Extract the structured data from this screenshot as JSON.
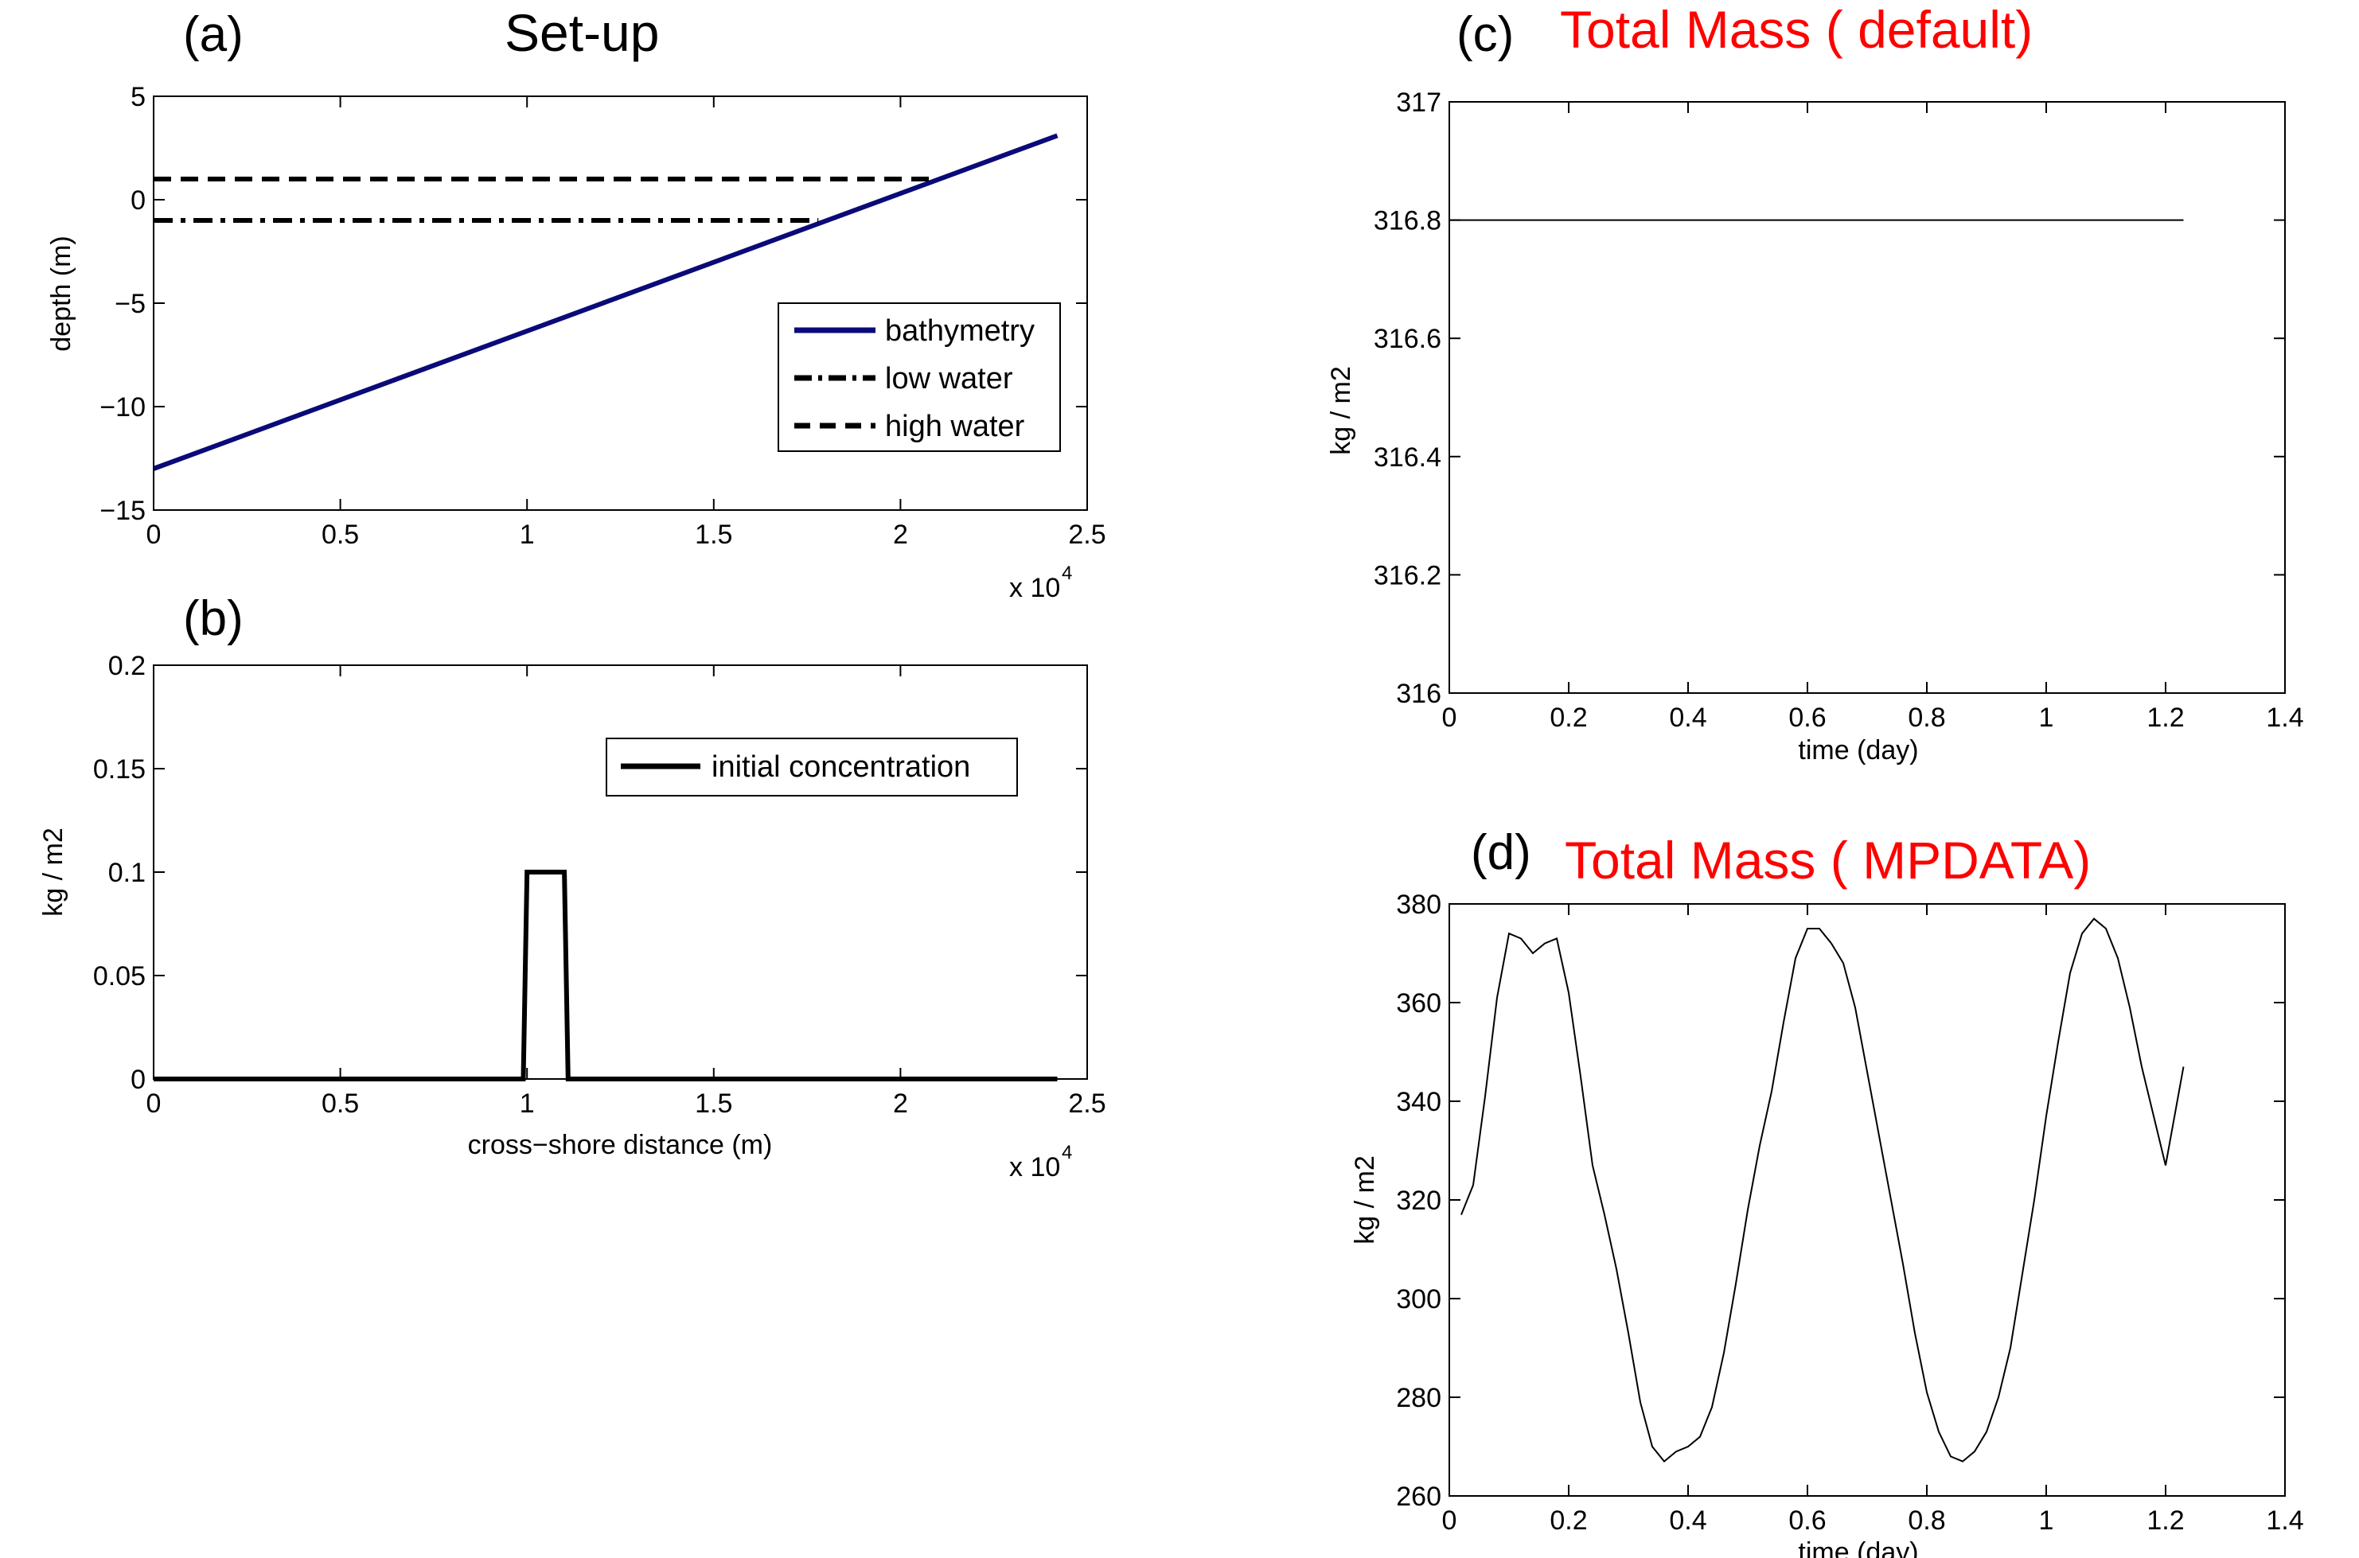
{
  "chart_data": [
    {
      "id": "a",
      "panel_label": "(a)",
      "title": "Set-up",
      "type": "line",
      "xlabel": "",
      "ylabel": "depth (m)",
      "xlim": [
        0,
        25000
      ],
      "ylim": [
        -15,
        5
      ],
      "x_ticks": [
        0,
        5000,
        10000,
        15000,
        20000,
        25000
      ],
      "x_tick_labels": [
        "0",
        "0.5",
        "1",
        "1.5",
        "2",
        "2.5"
      ],
      "y_ticks": [
        -15,
        -10,
        -5,
        0,
        5
      ],
      "y_tick_labels": [
        "−15",
        "−10",
        "−5",
        "0",
        "5"
      ],
      "x_multiplier": {
        "base": "x 10",
        "exponent": "4"
      },
      "legend": {
        "placement": "right",
        "entries": [
          "bathymetry",
          "low water",
          "high water"
        ]
      },
      "series": [
        {
          "name": "bathymetry",
          "style": "solid",
          "color": "#0a0a78",
          "x": [
            0,
            24200
          ],
          "y": [
            -13,
            3.1
          ]
        },
        {
          "name": "low water",
          "style": "dashdot",
          "color": "#000000",
          "x": [
            0,
            17800
          ],
          "y": [
            -1,
            -1
          ]
        },
        {
          "name": "high water",
          "style": "dashed",
          "color": "#000000",
          "x": [
            0,
            21000
          ],
          "y": [
            1,
            1
          ]
        }
      ]
    },
    {
      "id": "b",
      "panel_label": "(b)",
      "title": "",
      "type": "line",
      "xlabel": "cross−shore distance (m)",
      "ylabel": "kg / m2",
      "xlim": [
        0,
        25000
      ],
      "ylim": [
        0,
        0.2
      ],
      "x_ticks": [
        0,
        5000,
        10000,
        15000,
        20000,
        25000
      ],
      "x_tick_labels": [
        "0",
        "0.5",
        "1",
        "1.5",
        "2",
        "2.5"
      ],
      "y_ticks": [
        0,
        0.05,
        0.1,
        0.15,
        0.2
      ],
      "y_tick_labels": [
        "0",
        "0.05",
        "0.1",
        "0.15",
        "0.2"
      ],
      "x_multiplier": {
        "base": "x 10",
        "exponent": "4"
      },
      "legend": {
        "placement": "top-right",
        "entries": [
          "initial concentration"
        ]
      },
      "series": [
        {
          "name": "initial concentration",
          "style": "solid",
          "color": "#000000",
          "x": [
            0,
            9900,
            10000,
            11000,
            11100,
            24200
          ],
          "y": [
            0,
            0,
            0.1,
            0.1,
            0,
            0
          ]
        }
      ]
    },
    {
      "id": "c",
      "panel_label": "(c)",
      "title": "Total Mass ( default)",
      "type": "line",
      "xlabel": "time (day)",
      "ylabel": "kg / m2",
      "xlim": [
        0,
        1.4
      ],
      "ylim": [
        316,
        317
      ],
      "x_ticks": [
        0,
        0.2,
        0.4,
        0.6,
        0.8,
        1,
        1.2,
        1.4
      ],
      "x_tick_labels": [
        "0",
        "0.2",
        "0.4",
        "0.6",
        "0.8",
        "1",
        "1.2",
        "1.4"
      ],
      "y_ticks": [
        316,
        316.2,
        316.4,
        316.6,
        316.8,
        317
      ],
      "y_tick_labels": [
        "316",
        "316.2",
        "316.4",
        "316.6",
        "316.8",
        "317"
      ],
      "series": [
        {
          "style": "thin",
          "color": "#000000",
          "x": [
            0,
            1.23
          ],
          "y": [
            316.8,
            316.8
          ]
        }
      ]
    },
    {
      "id": "d",
      "panel_label": "(d)",
      "title": "Total Mass ( MPDATA)",
      "type": "line",
      "xlabel": "time (day)",
      "ylabel": "kg / m2",
      "xlim": [
        0,
        1.4
      ],
      "ylim": [
        260,
        380
      ],
      "x_ticks": [
        0,
        0.2,
        0.4,
        0.6,
        0.8,
        1,
        1.2,
        1.4
      ],
      "x_tick_labels": [
        "0",
        "0.2",
        "0.4",
        "0.6",
        "0.8",
        "1",
        "1.2",
        "1.4"
      ],
      "y_ticks": [
        260,
        280,
        300,
        320,
        340,
        360,
        380
      ],
      "y_tick_labels": [
        "260",
        "280",
        "300",
        "320",
        "340",
        "360",
        "380"
      ],
      "series": [
        {
          "style": "thin",
          "color": "#000000",
          "x": [
            0.02,
            0.04,
            0.06,
            0.08,
            0.1,
            0.12,
            0.14,
            0.16,
            0.18,
            0.2,
            0.22,
            0.24,
            0.26,
            0.28,
            0.3,
            0.32,
            0.34,
            0.36,
            0.38,
            0.4,
            0.42,
            0.44,
            0.46,
            0.48,
            0.5,
            0.52,
            0.54,
            0.56,
            0.58,
            0.6,
            0.62,
            0.64,
            0.66,
            0.68,
            0.7,
            0.72,
            0.74,
            0.76,
            0.78,
            0.8,
            0.82,
            0.84,
            0.86,
            0.88,
            0.9,
            0.92,
            0.94,
            0.96,
            0.98,
            1.0,
            1.02,
            1.04,
            1.06,
            1.08,
            1.1,
            1.12,
            1.14,
            1.16,
            1.18,
            1.2,
            1.23
          ],
          "y": [
            317,
            323,
            341,
            361,
            374,
            373,
            370,
            372,
            373,
            362,
            345,
            327,
            317,
            306,
            293,
            279,
            270,
            267,
            269,
            270,
            272,
            278,
            289,
            303,
            318,
            331,
            342,
            356,
            369,
            375,
            375,
            372,
            368,
            359,
            346,
            333,
            320,
            307,
            293,
            281,
            273,
            268,
            267,
            269,
            273,
            280,
            290,
            305,
            320,
            337,
            352,
            366,
            374,
            377,
            375,
            369,
            359,
            347,
            337,
            327,
            347
          ]
        }
      ]
    }
  ]
}
